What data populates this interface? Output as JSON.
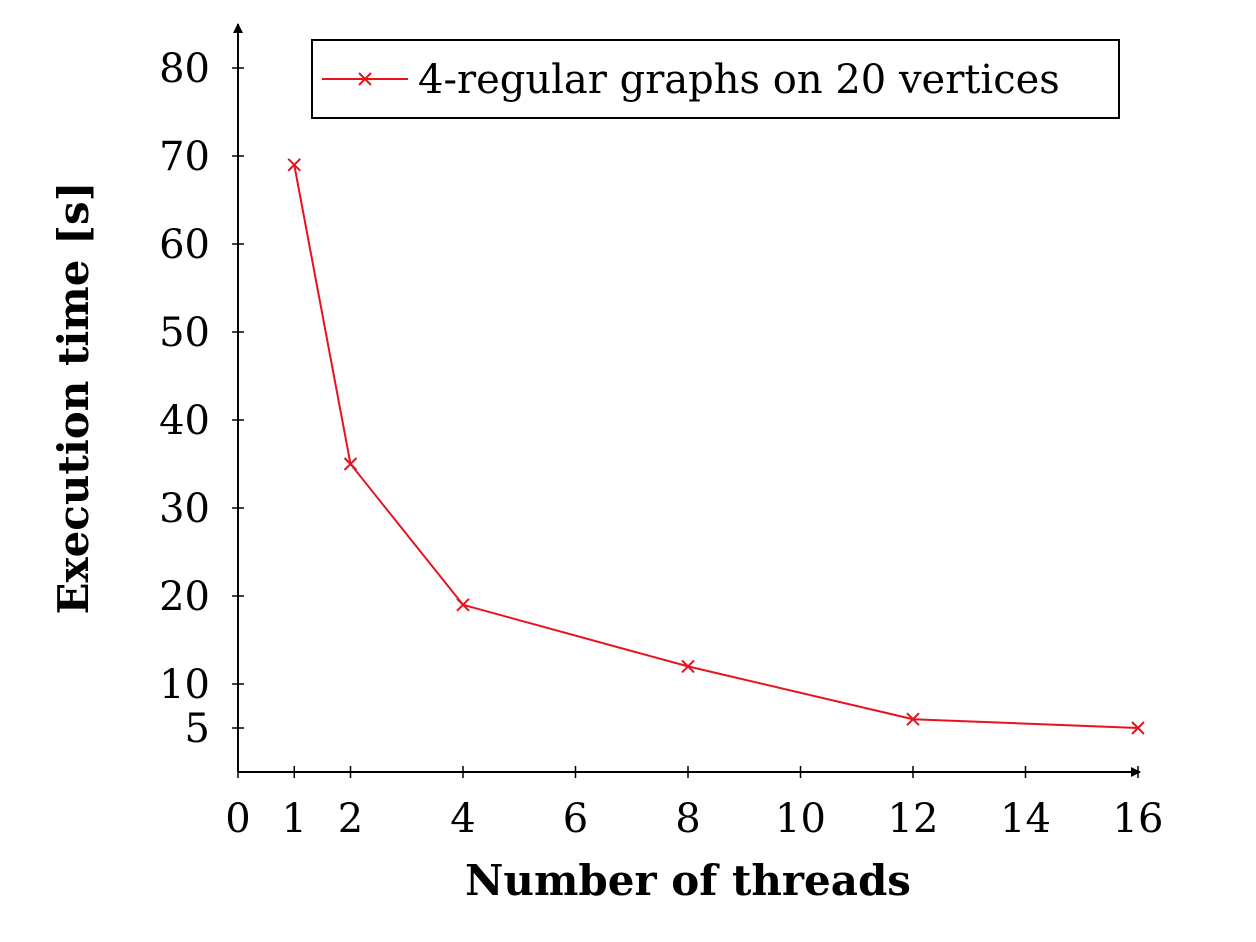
{
  "chart_data": {
    "type": "line",
    "title": "",
    "xlabel": "Number of threads",
    "ylabel": "Execution time [s]",
    "xlim": [
      0,
      16
    ],
    "ylim": [
      0,
      80
    ],
    "x_ticks": [
      0,
      1,
      2,
      4,
      6,
      8,
      10,
      12,
      14,
      16
    ],
    "y_ticks": [
      5,
      10,
      20,
      30,
      40,
      50,
      60,
      70,
      80
    ],
    "grid": false,
    "legend_position": "top-right",
    "series": [
      {
        "name": "4-regular graphs on 20 vertices",
        "color": "#e8121f",
        "marker": "x",
        "x": [
          1,
          2,
          4,
          8,
          12,
          16
        ],
        "y": [
          69,
          35,
          19,
          12,
          6,
          5
        ]
      }
    ]
  }
}
